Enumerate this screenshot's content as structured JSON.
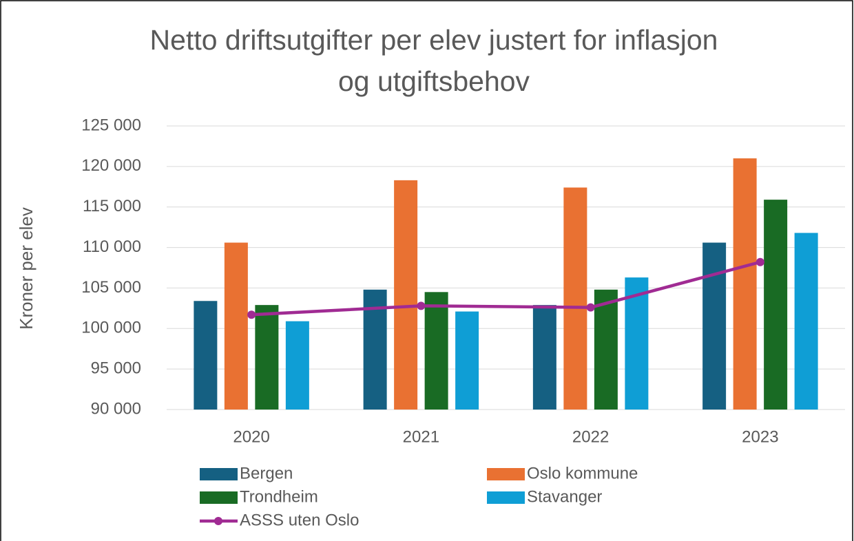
{
  "chart_data": {
    "type": "bar",
    "title": "Netto driftsutgifter per elev justert for inflasjon og utgiftsbehov",
    "ylabel": "Kroner per elev",
    "categories": [
      "2020",
      "2021",
      "2022",
      "2023"
    ],
    "series": [
      {
        "name": "Bergen",
        "color": "#156082",
        "values": [
          103400,
          104800,
          102900,
          110600
        ]
      },
      {
        "name": "Oslo kommune",
        "color": "#e97132",
        "values": [
          110600,
          118300,
          117400,
          121000
        ]
      },
      {
        "name": "Trondheim",
        "color": "#196b24",
        "values": [
          102900,
          104500,
          104800,
          115900
        ]
      },
      {
        "name": "Stavanger",
        "color": "#0f9ed5",
        "values": [
          100900,
          102100,
          106300,
          111800
        ]
      },
      {
        "name": "ASSS uten Oslo",
        "color": "#a02b93",
        "type": "line",
        "values": [
          101700,
          102800,
          102600,
          108200
        ]
      }
    ],
    "ylim": [
      90000,
      125000
    ],
    "yticks": [
      {
        "value": 90000,
        "label": "90 000"
      },
      {
        "value": 95000,
        "label": "95 000"
      },
      {
        "value": 100000,
        "label": "100 000"
      },
      {
        "value": 105000,
        "label": "105 000"
      },
      {
        "value": 110000,
        "label": "110 000"
      },
      {
        "value": 115000,
        "label": "115 000"
      },
      {
        "value": 120000,
        "label": "120 000"
      },
      {
        "value": 125000,
        "label": "125 000"
      }
    ],
    "grid": true,
    "legend": "bottom"
  }
}
